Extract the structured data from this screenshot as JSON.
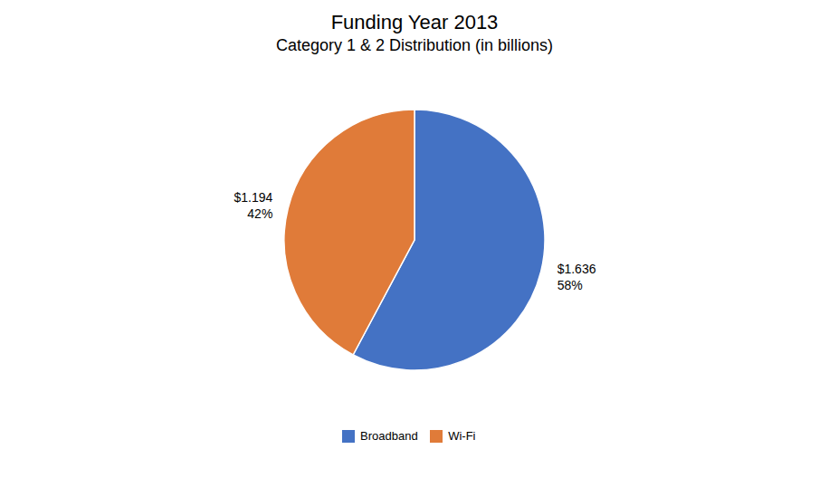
{
  "chart_data": {
    "type": "pie",
    "title": "Funding Year 2013",
    "subtitle": "Category 1 & 2 Distribution (in billions)",
    "categories": [
      "Broadband",
      "Wi-Fi"
    ],
    "values": [
      1.636,
      1.194
    ],
    "value_labels": [
      "$1.636\n58%",
      "$1.194\n42%"
    ],
    "colors": [
      "#4472C4",
      "#E07B39"
    ],
    "data_labels": true,
    "legend": "bottom"
  }
}
